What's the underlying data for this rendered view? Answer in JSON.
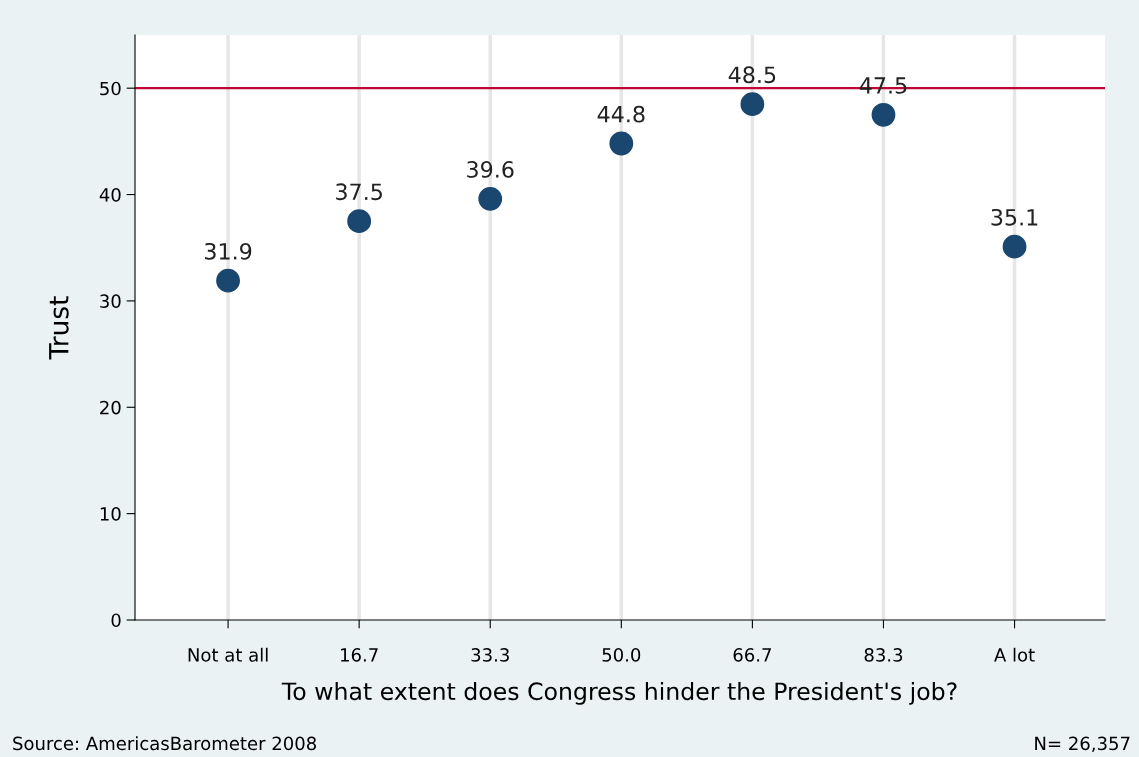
{
  "chart_data": {
    "type": "scatter",
    "xlabel": "To what extent does Congress hinder the President's job?",
    "ylabel": "Trust",
    "categories": [
      "Not at all",
      "16.7",
      "33.3",
      "50.0",
      "66.7",
      "83.3",
      "A lot"
    ],
    "values": [
      31.9,
      37.5,
      39.6,
      44.8,
      48.5,
      47.5,
      35.1
    ],
    "color": "#1a476f",
    "marker": "circle",
    "data_labels": true,
    "ylim": [
      0,
      55
    ],
    "yticks": [
      0,
      10,
      20,
      30,
      40,
      50
    ],
    "grid": "x",
    "ref_lines": [
      {
        "axis": "y",
        "value": 50,
        "color": "#c10534"
      }
    ],
    "annotations": [
      "Source: AmericasBarometer 2008",
      "N= 26,357"
    ]
  }
}
